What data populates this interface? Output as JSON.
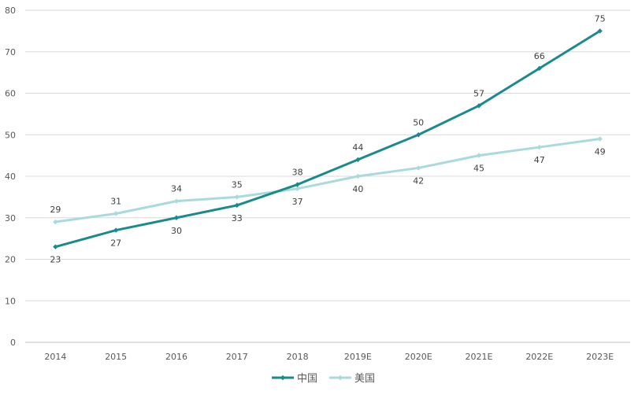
{
  "chart_data": {
    "type": "line",
    "categories": [
      "2014",
      "2015",
      "2016",
      "2017",
      "2018",
      "2019E",
      "2020E",
      "2021E",
      "2022E",
      "2023E"
    ],
    "series": [
      {
        "name": "中国",
        "values": [
          23,
          27,
          30,
          33,
          38,
          44,
          50,
          57,
          66,
          75
        ],
        "color": "#1b8a8c",
        "label_positions": [
          "below",
          "below",
          "below",
          "below",
          "above",
          "above",
          "above",
          "above",
          "above",
          "above"
        ]
      },
      {
        "name": "美国",
        "values": [
          29,
          31,
          34,
          35,
          37,
          40,
          42,
          45,
          47,
          49
        ],
        "color": "#a9dadc",
        "label_positions": [
          "above",
          "above",
          "above",
          "above",
          "below",
          "below",
          "below",
          "below",
          "below",
          "below"
        ]
      }
    ],
    "yticks": [
      "0",
      "10",
      "20",
      "30",
      "40",
      "50",
      "60",
      "70",
      "80"
    ],
    "ylim": [
      0,
      80
    ],
    "grid": true,
    "legend": "bottom-center",
    "marker": "diamond"
  }
}
